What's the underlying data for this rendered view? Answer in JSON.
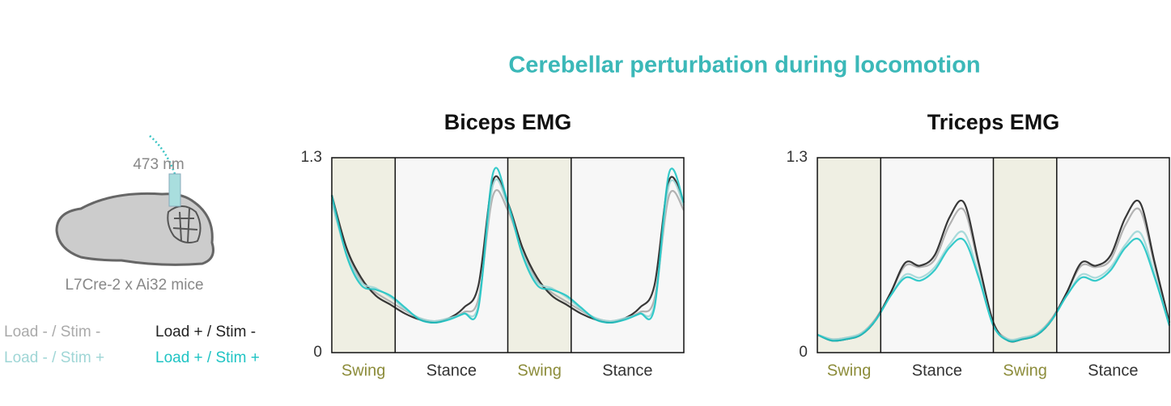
{
  "title": "Cerebellar perturbation during locomotion",
  "illustration": {
    "wavelength": "473 nm",
    "mouse_line": "L7Cre-2 x Ai32 mice"
  },
  "chart_data": [
    {
      "type": "line",
      "title": "Biceps EMG",
      "ylim": [
        0,
        1.3
      ],
      "yticks": [
        0,
        1.3
      ],
      "phases": [
        "Swing",
        "Stance",
        "Swing",
        "Stance"
      ],
      "swing_color": "#8c8c3a",
      "stance_color": "#333333",
      "series": [
        {
          "name": "Load - / Stim -",
          "color": "#aaaaaa",
          "values": [
            1.0,
            0.68,
            0.48,
            0.4,
            0.34,
            0.28,
            0.23,
            0.21,
            0.23,
            0.27,
            0.36,
            1.05,
            0.95,
            0.68,
            0.48,
            0.4,
            0.34,
            0.28,
            0.23,
            0.21,
            0.23,
            0.27,
            0.36,
            1.05,
            0.95
          ]
        },
        {
          "name": "Load + / Stim -",
          "color": "#222222",
          "values": [
            1.05,
            0.7,
            0.5,
            0.38,
            0.32,
            0.26,
            0.22,
            0.2,
            0.23,
            0.3,
            0.45,
            1.15,
            1.0,
            0.7,
            0.5,
            0.38,
            0.32,
            0.26,
            0.22,
            0.2,
            0.23,
            0.3,
            0.45,
            1.15,
            1.0
          ]
        },
        {
          "name": "Load - / Stim +",
          "color": "#9fd6d6",
          "values": [
            1.0,
            0.66,
            0.47,
            0.43,
            0.37,
            0.29,
            0.23,
            0.21,
            0.23,
            0.26,
            0.32,
            1.12,
            0.98,
            0.66,
            0.47,
            0.43,
            0.37,
            0.29,
            0.23,
            0.21,
            0.23,
            0.26,
            0.32,
            1.12,
            0.98
          ]
        },
        {
          "name": "Load + / Stim +",
          "color": "#1fc4c4",
          "values": [
            1.05,
            0.65,
            0.45,
            0.42,
            0.38,
            0.3,
            0.22,
            0.2,
            0.22,
            0.26,
            0.3,
            1.2,
            1.0,
            0.65,
            0.45,
            0.42,
            0.38,
            0.3,
            0.22,
            0.2,
            0.22,
            0.26,
            0.3,
            1.2,
            1.0
          ]
        }
      ]
    },
    {
      "type": "line",
      "title": "Triceps EMG",
      "ylim": [
        0,
        1.3
      ],
      "yticks": [
        0,
        1.3
      ],
      "phases": [
        "Swing",
        "Stance",
        "Swing",
        "Stance"
      ],
      "swing_color": "#8c8c3a",
      "stance_color": "#333333",
      "series": [
        {
          "color": "#aaaaaa",
          "values": [
            0.12,
            0.09,
            0.1,
            0.13,
            0.23,
            0.4,
            0.58,
            0.57,
            0.62,
            0.85,
            0.95,
            0.58,
            0.2,
            0.09,
            0.1,
            0.13,
            0.23,
            0.4,
            0.58,
            0.57,
            0.62,
            0.85,
            0.95,
            0.58,
            0.2
          ]
        },
        {
          "color": "#222222",
          "values": [
            0.12,
            0.08,
            0.09,
            0.12,
            0.22,
            0.4,
            0.6,
            0.58,
            0.65,
            0.9,
            1.0,
            0.6,
            0.2,
            0.08,
            0.09,
            0.12,
            0.22,
            0.4,
            0.6,
            0.58,
            0.65,
            0.9,
            1.0,
            0.6,
            0.2
          ]
        },
        {
          "color": "#9fd6d6",
          "values": [
            0.12,
            0.09,
            0.1,
            0.13,
            0.22,
            0.38,
            0.52,
            0.5,
            0.57,
            0.72,
            0.8,
            0.52,
            0.18,
            0.09,
            0.1,
            0.13,
            0.22,
            0.38,
            0.52,
            0.5,
            0.57,
            0.72,
            0.8,
            0.52,
            0.18
          ]
        },
        {
          "color": "#1fc4c4",
          "values": [
            0.12,
            0.08,
            0.09,
            0.12,
            0.22,
            0.38,
            0.5,
            0.48,
            0.55,
            0.7,
            0.75,
            0.5,
            0.18,
            0.08,
            0.09,
            0.12,
            0.22,
            0.38,
            0.5,
            0.48,
            0.55,
            0.7,
            0.75,
            0.5,
            0.18
          ]
        }
      ]
    }
  ]
}
